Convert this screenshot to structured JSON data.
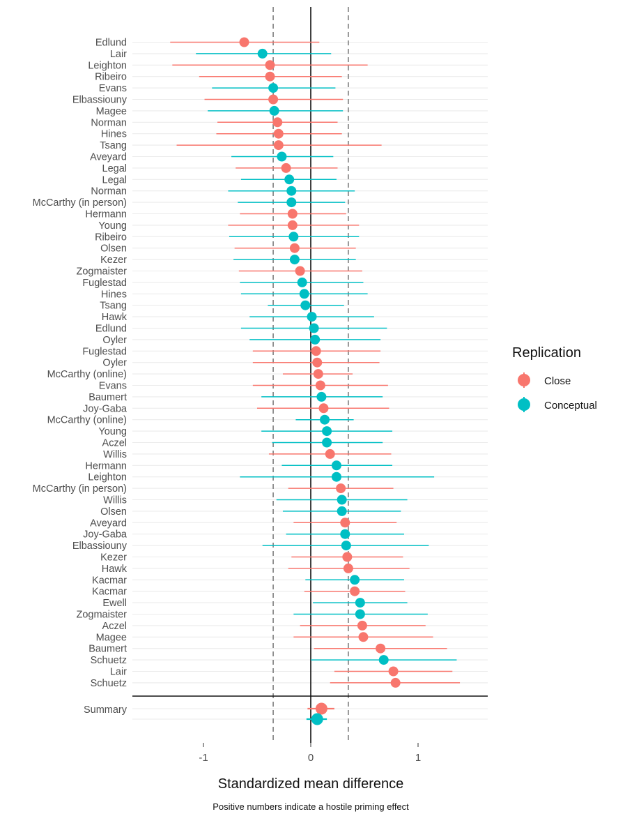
{
  "chart_data": {
    "type": "forest",
    "xlabel": "Standardized mean difference",
    "caption": "Positive numbers indicate a hostile priming effect",
    "xlim": [
      -1.65,
      1.65
    ],
    "x_ticks": [
      -1,
      0,
      1
    ],
    "x_tick_labels": [
      "-1",
      "0",
      "1"
    ],
    "reference_lines": [
      -0.35,
      0.35
    ],
    "zero_line": 0,
    "legend": {
      "title": "Replication",
      "position": "right",
      "entries": [
        {
          "name": "Close",
          "color": "#F8766D"
        },
        {
          "name": "Conceptual",
          "color": "#00BFC4"
        }
      ]
    },
    "studies": [
      {
        "label": "Edlund",
        "group": "Close",
        "est": -0.62,
        "lo": -1.31,
        "hi": 0.08
      },
      {
        "label": "Lair",
        "group": "Conceptual",
        "est": -0.45,
        "lo": -1.07,
        "hi": 0.19
      },
      {
        "label": "Leighton",
        "group": "Close",
        "est": -0.38,
        "lo": -1.29,
        "hi": 0.53
      },
      {
        "label": "Ribeiro",
        "group": "Close",
        "est": -0.38,
        "lo": -1.04,
        "hi": 0.29
      },
      {
        "label": "Evans",
        "group": "Conceptual",
        "est": -0.35,
        "lo": -0.92,
        "hi": 0.23
      },
      {
        "label": "Elbassiouny",
        "group": "Close",
        "est": -0.35,
        "lo": -0.99,
        "hi": 0.3
      },
      {
        "label": "Magee",
        "group": "Conceptual",
        "est": -0.34,
        "lo": -0.96,
        "hi": 0.3
      },
      {
        "label": "Norman",
        "group": "Close",
        "est": -0.31,
        "lo": -0.87,
        "hi": 0.25
      },
      {
        "label": "Hines",
        "group": "Close",
        "est": -0.3,
        "lo": -0.88,
        "hi": 0.29
      },
      {
        "label": "Tsang",
        "group": "Close",
        "est": -0.3,
        "lo": -1.25,
        "hi": 0.66
      },
      {
        "label": "Aveyard",
        "group": "Conceptual",
        "est": -0.27,
        "lo": -0.74,
        "hi": 0.21
      },
      {
        "label": "Legal",
        "group": "Close",
        "est": -0.23,
        "lo": -0.7,
        "hi": 0.25
      },
      {
        "label": "Legal",
        "group": "Conceptual",
        "est": -0.2,
        "lo": -0.65,
        "hi": 0.24
      },
      {
        "label": "Norman",
        "group": "Conceptual",
        "est": -0.18,
        "lo": -0.77,
        "hi": 0.41
      },
      {
        "label": "McCarthy (in person)",
        "group": "Conceptual",
        "est": -0.18,
        "lo": -0.68,
        "hi": 0.32
      },
      {
        "label": "Hermann",
        "group": "Close",
        "est": -0.17,
        "lo": -0.66,
        "hi": 0.33
      },
      {
        "label": "Young",
        "group": "Close",
        "est": -0.17,
        "lo": -0.77,
        "hi": 0.45
      },
      {
        "label": "Ribeiro",
        "group": "Conceptual",
        "est": -0.16,
        "lo": -0.76,
        "hi": 0.45
      },
      {
        "label": "Olsen",
        "group": "Close",
        "est": -0.15,
        "lo": -0.71,
        "hi": 0.42
      },
      {
        "label": "Kezer",
        "group": "Conceptual",
        "est": -0.15,
        "lo": -0.72,
        "hi": 0.42
      },
      {
        "label": "Zogmaister",
        "group": "Close",
        "est": -0.1,
        "lo": -0.67,
        "hi": 0.48
      },
      {
        "label": "Fuglestad",
        "group": "Conceptual",
        "est": -0.08,
        "lo": -0.66,
        "hi": 0.49
      },
      {
        "label": "Hines",
        "group": "Conceptual",
        "est": -0.06,
        "lo": -0.65,
        "hi": 0.53
      },
      {
        "label": "Tsang",
        "group": "Conceptual",
        "est": -0.05,
        "lo": -0.4,
        "hi": 0.31
      },
      {
        "label": "Hawk",
        "group": "Conceptual",
        "est": 0.01,
        "lo": -0.57,
        "hi": 0.59
      },
      {
        "label": "Edlund",
        "group": "Conceptual",
        "est": 0.03,
        "lo": -0.65,
        "hi": 0.71
      },
      {
        "label": "Oyler",
        "group": "Conceptual",
        "est": 0.04,
        "lo": -0.57,
        "hi": 0.65
      },
      {
        "label": "Fuglestad",
        "group": "Close",
        "est": 0.05,
        "lo": -0.54,
        "hi": 0.65
      },
      {
        "label": "Oyler",
        "group": "Close",
        "est": 0.06,
        "lo": -0.54,
        "hi": 0.64
      },
      {
        "label": "McCarthy (online)",
        "group": "Close",
        "est": 0.07,
        "lo": -0.26,
        "hi": 0.39
      },
      {
        "label": "Evans",
        "group": "Close",
        "est": 0.09,
        "lo": -0.54,
        "hi": 0.72
      },
      {
        "label": "Baumert",
        "group": "Conceptual",
        "est": 0.1,
        "lo": -0.46,
        "hi": 0.67
      },
      {
        "label": "Joy-Gaba",
        "group": "Close",
        "est": 0.12,
        "lo": -0.5,
        "hi": 0.73
      },
      {
        "label": "McCarthy (online)",
        "group": "Conceptual",
        "est": 0.13,
        "lo": -0.14,
        "hi": 0.4
      },
      {
        "label": "Young",
        "group": "Conceptual",
        "est": 0.15,
        "lo": -0.46,
        "hi": 0.76
      },
      {
        "label": "Aczel",
        "group": "Conceptual",
        "est": 0.15,
        "lo": -0.36,
        "hi": 0.67
      },
      {
        "label": "Willis",
        "group": "Close",
        "est": 0.18,
        "lo": -0.39,
        "hi": 0.75
      },
      {
        "label": "Hermann",
        "group": "Conceptual",
        "est": 0.24,
        "lo": -0.27,
        "hi": 0.76
      },
      {
        "label": "Leighton",
        "group": "Conceptual",
        "est": 0.24,
        "lo": -0.66,
        "hi": 1.15
      },
      {
        "label": "McCarthy (in person)",
        "group": "Close",
        "est": 0.28,
        "lo": -0.21,
        "hi": 0.77
      },
      {
        "label": "Willis",
        "group": "Conceptual",
        "est": 0.29,
        "lo": -0.32,
        "hi": 0.9
      },
      {
        "label": "Olsen",
        "group": "Conceptual",
        "est": 0.29,
        "lo": -0.26,
        "hi": 0.84
      },
      {
        "label": "Aveyard",
        "group": "Close",
        "est": 0.32,
        "lo": -0.16,
        "hi": 0.8
      },
      {
        "label": "Joy-Gaba",
        "group": "Conceptual",
        "est": 0.32,
        "lo": -0.23,
        "hi": 0.87
      },
      {
        "label": "Elbassiouny",
        "group": "Conceptual",
        "est": 0.33,
        "lo": -0.45,
        "hi": 1.1
      },
      {
        "label": "Kezer",
        "group": "Close",
        "est": 0.34,
        "lo": -0.18,
        "hi": 0.86
      },
      {
        "label": "Hawk",
        "group": "Close",
        "est": 0.35,
        "lo": -0.21,
        "hi": 0.92
      },
      {
        "label": "Kacmar",
        "group": "Conceptual",
        "est": 0.41,
        "lo": -0.05,
        "hi": 0.87
      },
      {
        "label": "Kacmar",
        "group": "Close",
        "est": 0.41,
        "lo": -0.06,
        "hi": 0.88
      },
      {
        "label": "Ewell",
        "group": "Conceptual",
        "est": 0.46,
        "lo": 0.02,
        "hi": 0.9
      },
      {
        "label": "Zogmaister",
        "group": "Conceptual",
        "est": 0.46,
        "lo": -0.16,
        "hi": 1.09
      },
      {
        "label": "Aczel",
        "group": "Close",
        "est": 0.48,
        "lo": -0.1,
        "hi": 1.07
      },
      {
        "label": "Magee",
        "group": "Close",
        "est": 0.49,
        "lo": -0.16,
        "hi": 1.14
      },
      {
        "label": "Baumert",
        "group": "Close",
        "est": 0.65,
        "lo": 0.03,
        "hi": 1.27
      },
      {
        "label": "Schuetz",
        "group": "Conceptual",
        "est": 0.68,
        "lo": 0.0,
        "hi": 1.36
      },
      {
        "label": "Lair",
        "group": "Close",
        "est": 0.77,
        "lo": 0.22,
        "hi": 1.32
      },
      {
        "label": "Schuetz",
        "group": "Close",
        "est": 0.79,
        "lo": 0.18,
        "hi": 1.39
      }
    ],
    "summary": {
      "label": "Summary",
      "estimates": [
        {
          "group": "Close",
          "est": 0.1,
          "lo": -0.03,
          "hi": 0.22
        },
        {
          "group": "Conceptual",
          "est": 0.06,
          "lo": -0.04,
          "hi": 0.15
        }
      ]
    }
  }
}
